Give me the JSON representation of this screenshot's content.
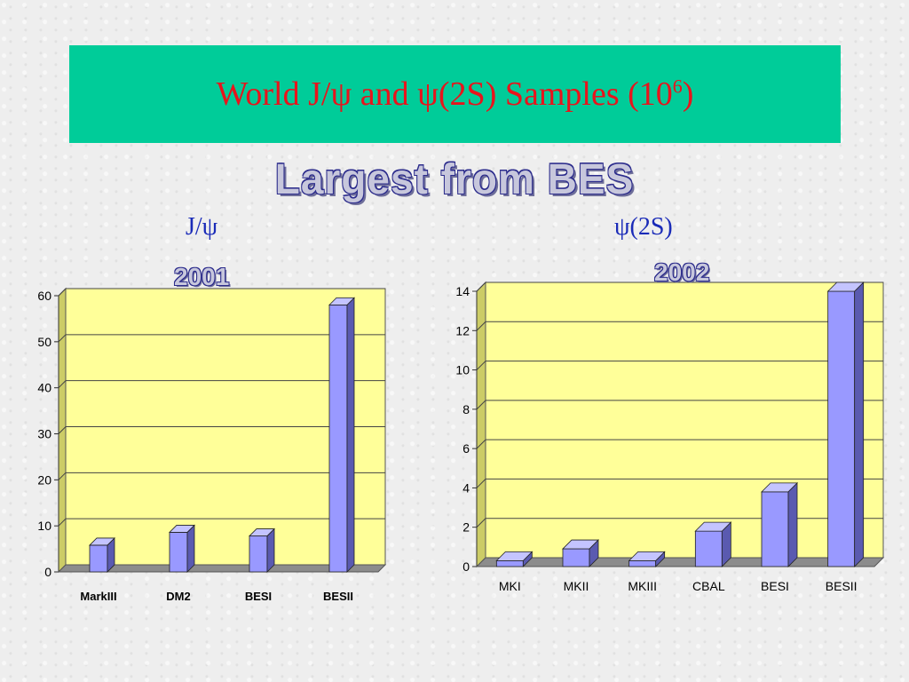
{
  "title": {
    "prefix": "World J/ψ and ψ(2S) Samples  (10",
    "superscript": "6",
    "suffix": ")"
  },
  "subtitle": "Largest from BES",
  "charts": {
    "jpsi": {
      "heading": "J/ψ",
      "year": "2001"
    },
    "psi2s": {
      "heading": "ψ(2S)",
      "year": "2002"
    }
  },
  "colors": {
    "plot_bg": "#ffff99",
    "bar_front": "#9999ff",
    "bar_side": "#5a5ab0",
    "bar_top": "#c4c4ff",
    "floor": "#8c8c8c",
    "title_bg": "#00cc99",
    "title_text": "#e8141c",
    "heading_text": "#1a2bb8"
  },
  "chart_data": [
    {
      "type": "bar",
      "categories": [
        "MarkIII",
        "DM2",
        "BESI",
        "BESII"
      ],
      "values": [
        5.8,
        8.6,
        7.8,
        58
      ],
      "ylim": [
        0,
        60
      ],
      "yticks": [
        "0",
        "10",
        "20",
        "30",
        "40",
        "50",
        "60"
      ],
      "grid": true
    },
    {
      "type": "bar",
      "categories": [
        "MKI",
        "MKII",
        "MKIII",
        "CBAL",
        "BESI",
        "BESII"
      ],
      "values": [
        0.3,
        0.9,
        0.3,
        1.8,
        3.8,
        14
      ],
      "ylim": [
        0,
        14
      ],
      "yticks": [
        "0",
        "2",
        "4",
        "6",
        "8",
        "10",
        "12",
        "14"
      ],
      "grid": true
    }
  ]
}
